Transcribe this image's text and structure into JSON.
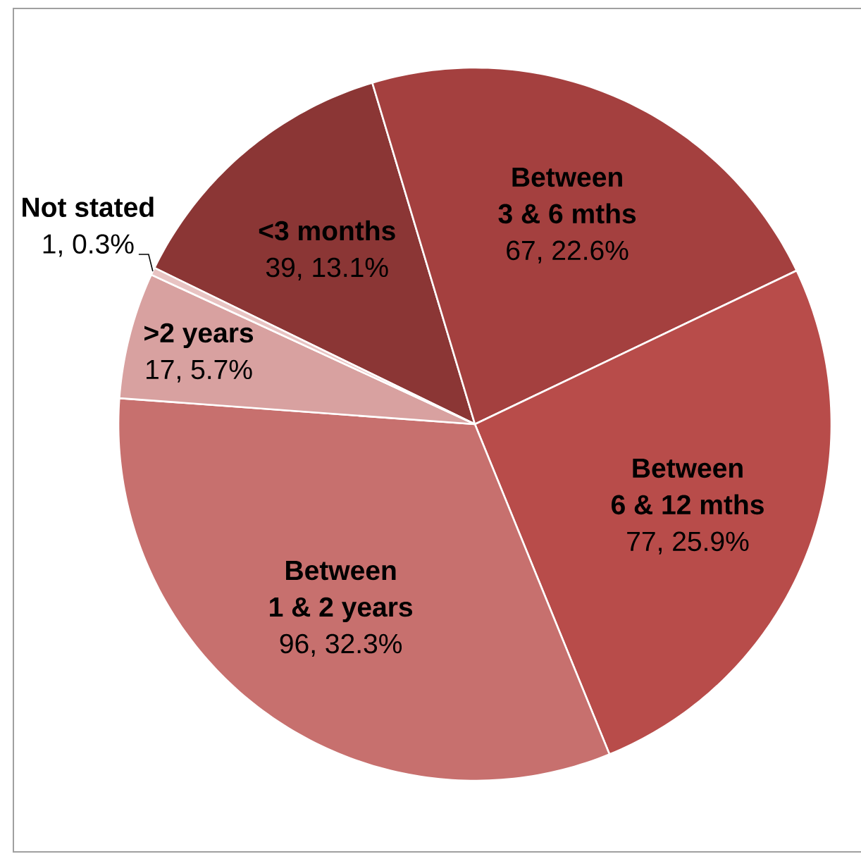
{
  "chart_data": {
    "type": "pie",
    "categories": [
      "<3 months",
      "Between 3 & 6 mths",
      "Between 6 & 12 mths",
      "Between 1 & 2 years",
      ">2 years",
      "Not stated"
    ],
    "values": [
      39,
      67,
      77,
      96,
      17,
      1
    ],
    "value_labels": [
      "39, 13.1%",
      "67, 22.6%",
      "77, 25.9%",
      "96, 32.3%",
      "17, 5.7%",
      "1, 0.3%"
    ],
    "colors": [
      "#8b3635",
      "#a4403f",
      "#b84c4a",
      "#c7706e",
      "#d8a1a0",
      "#e8c3c2"
    ]
  }
}
